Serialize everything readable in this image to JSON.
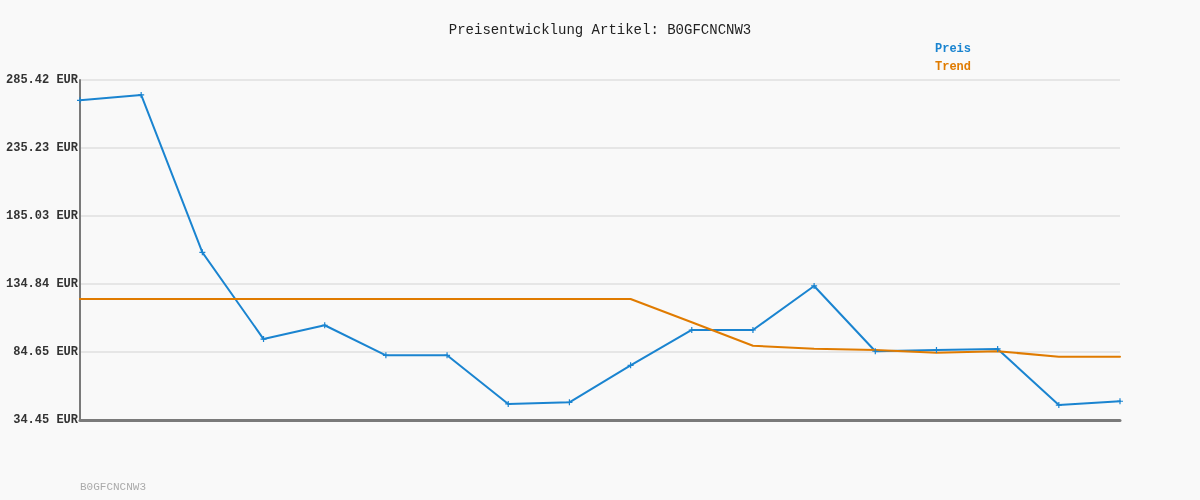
{
  "chart_data": {
    "type": "line",
    "title": "Preisentwicklung Artikel: B0GFCNCNW3",
    "categories": [
      null,
      null,
      null,
      null,
      null,
      null,
      null,
      null,
      null,
      null,
      null,
      null,
      null,
      null,
      null,
      null,
      null,
      null
    ],
    "series": [
      {
        "name": "Preis",
        "color": "#1a84d0",
        "marker": "cross",
        "values": [
          270.4,
          274.4,
          158.2,
          94.2,
          104.4,
          82.2,
          82.2,
          46.3,
          47.5,
          74.8,
          100.9,
          100.9,
          133.4,
          85.2,
          86.1,
          86.9,
          45.5,
          48.3
        ]
      },
      {
        "name": "Trend",
        "color": "#e07b00",
        "marker": "none",
        "values": [
          123.8,
          123.8,
          123.8,
          123.8,
          123.8,
          123.8,
          123.8,
          123.8,
          123.8,
          123.8,
          106.6,
          89.3,
          87.0,
          86.1,
          84.1,
          85.2,
          81.2,
          81.2
        ]
      }
    ],
    "ylim": [
      34.45,
      285.42
    ],
    "yticks": [
      {
        "value": 34.45,
        "label": "34.45 EUR"
      },
      {
        "value": 84.65,
        "label": "84.65 EUR"
      },
      {
        "value": 134.84,
        "label": "134.84 EUR"
      },
      {
        "value": 185.03,
        "label": "185.03 EUR"
      },
      {
        "value": 235.23,
        "label": "235.23 EUR"
      },
      {
        "value": 285.42,
        "label": "285.42 EUR"
      }
    ],
    "grid": "y",
    "legend": "top right",
    "line_style": "solid",
    "tick_labels": "y",
    "annotations": [
      "B0GFCNCNW3"
    ]
  }
}
